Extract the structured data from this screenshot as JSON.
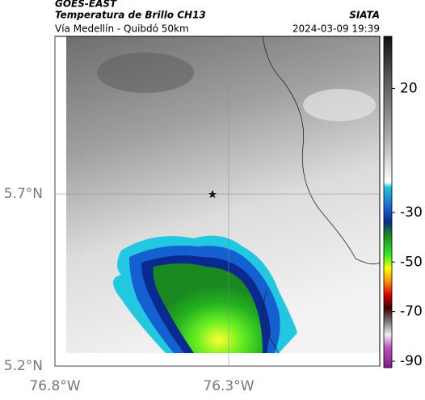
{
  "header": {
    "title": "GOES-EAST",
    "subtitle": "Temperatura de Brillo CH13",
    "source": "SIATA",
    "region": "Vía Medellín - Quibdó 50km",
    "timestamp": "2024-03-09 19:39"
  },
  "map": {
    "xlim": [
      -76.8,
      -75.865
    ],
    "ylim": [
      5.2,
      6.158
    ],
    "xticks": [
      {
        "value": -76.8,
        "label": "76.8°W"
      },
      {
        "value": -76.3,
        "label": "76.3°W"
      }
    ],
    "yticks": [
      {
        "value": 5.2,
        "label": "5.2°N"
      },
      {
        "value": 5.7,
        "label": "5.7°N"
      }
    ]
  },
  "colorbar": {
    "lim": [
      -92.6,
      41
    ],
    "ticks": [
      20,
      -30,
      -50,
      -70,
      -90
    ]
  }
}
